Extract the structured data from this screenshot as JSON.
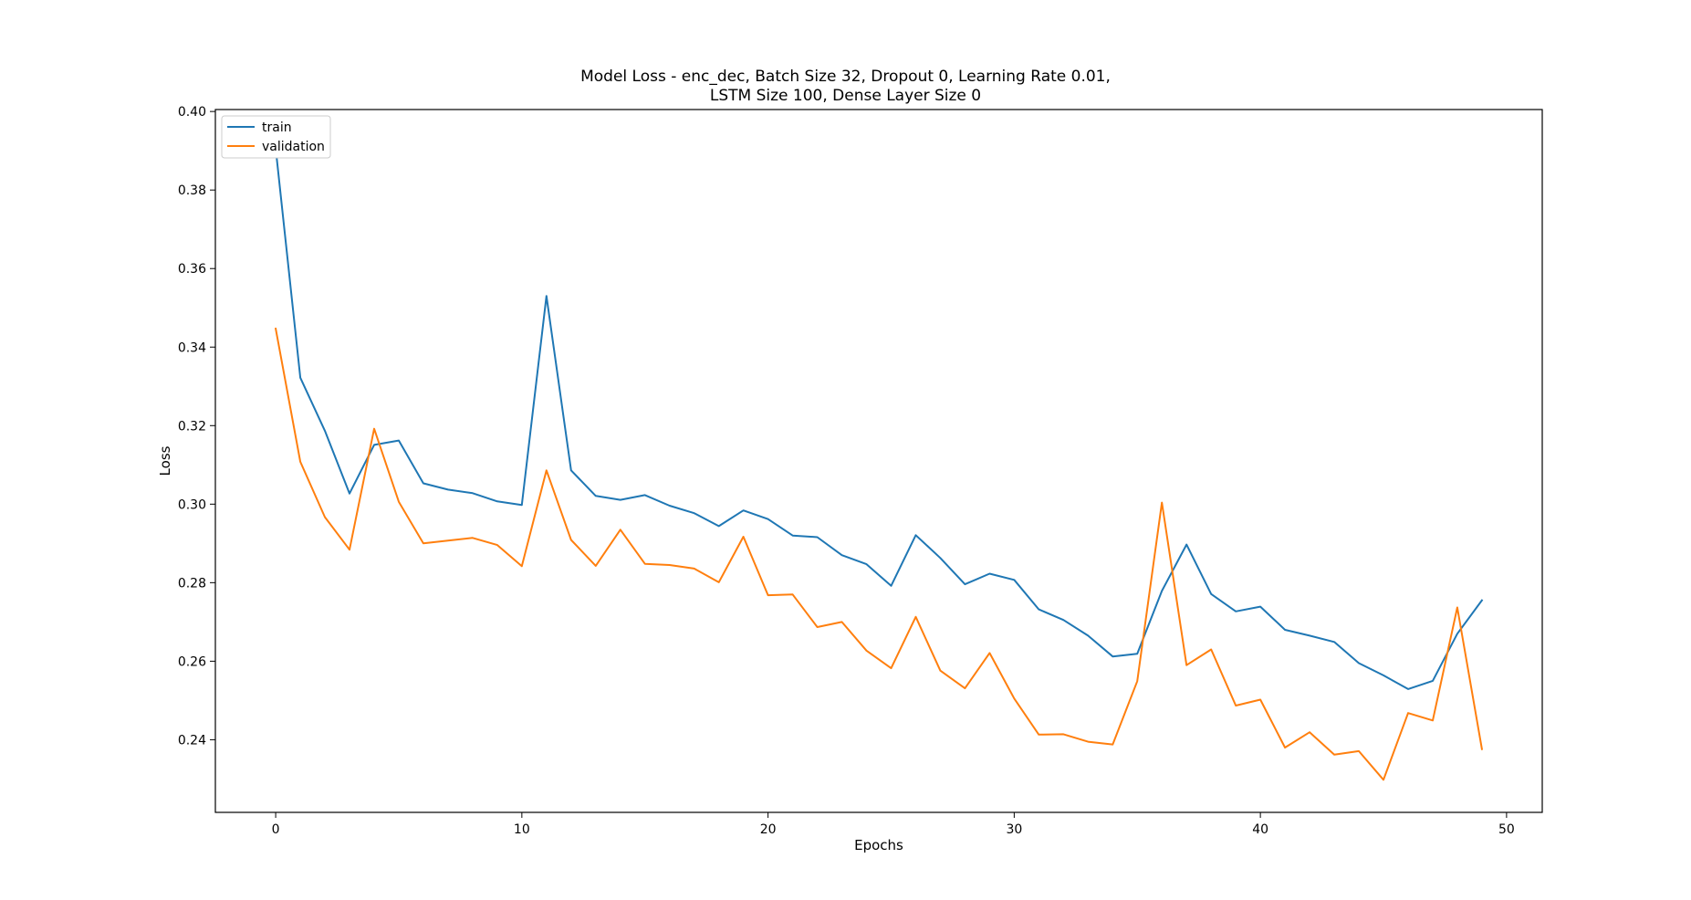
{
  "chart_data": {
    "type": "line",
    "title": "Model Loss - enc_dec, Batch Size 32, Dropout 0, Learning Rate 0.01,",
    "subtitle": "LSTM Size 100, Dense Layer Size 0",
    "xlabel": "Epochs",
    "ylabel": "Loss",
    "xlim": [
      -2.45,
      51.45
    ],
    "ylim": [
      0.2215,
      0.4005
    ],
    "xticks": [
      0,
      10,
      20,
      30,
      40,
      50
    ],
    "yticks": [
      0.24,
      0.26,
      0.28,
      0.3,
      0.32,
      0.34,
      0.36,
      0.38,
      0.4
    ],
    "ytick_labels": [
      "0.24",
      "0.26",
      "0.28",
      "0.30",
      "0.32",
      "0.34",
      "0.36",
      "0.38",
      "0.40"
    ],
    "grid": false,
    "legend_position": "upper left",
    "x": [
      0,
      1,
      2,
      3,
      4,
      5,
      6,
      7,
      8,
      9,
      10,
      11,
      12,
      13,
      14,
      15,
      16,
      17,
      18,
      19,
      20,
      21,
      22,
      23,
      24,
      25,
      26,
      27,
      28,
      29,
      30,
      31,
      32,
      33,
      34,
      35,
      36,
      37,
      38,
      39,
      40,
      41,
      42,
      43,
      44,
      45,
      46,
      47,
      48,
      49
    ],
    "series": [
      {
        "name": "train",
        "color": "#1f77b4",
        "values": [
          0.3906,
          0.3322,
          0.3187,
          0.3027,
          0.3151,
          0.3162,
          0.3053,
          0.3037,
          0.3028,
          0.3007,
          0.2998,
          0.353,
          0.3086,
          0.3021,
          0.3011,
          0.3023,
          0.2996,
          0.2977,
          0.2944,
          0.2984,
          0.2962,
          0.292,
          0.2916,
          0.287,
          0.2847,
          0.2792,
          0.2921,
          0.2863,
          0.2796,
          0.2823,
          0.2807,
          0.2732,
          0.2705,
          0.2665,
          0.2612,
          0.2619,
          0.2779,
          0.2897,
          0.2771,
          0.2727,
          0.2739,
          0.268,
          0.2665,
          0.2649,
          0.2595,
          0.2564,
          0.2529,
          0.255,
          0.267,
          0.2755
        ]
      },
      {
        "name": "validation",
        "color": "#ff7f0e",
        "values": [
          0.3447,
          0.3108,
          0.2967,
          0.2884,
          0.3192,
          0.3006,
          0.29,
          0.2907,
          0.2914,
          0.2896,
          0.2842,
          0.3086,
          0.2909,
          0.2843,
          0.2935,
          0.2848,
          0.2845,
          0.2836,
          0.2801,
          0.2917,
          0.2768,
          0.277,
          0.2687,
          0.27,
          0.2627,
          0.2582,
          0.2713,
          0.2576,
          0.2531,
          0.2621,
          0.2505,
          0.2413,
          0.2414,
          0.2395,
          0.2388,
          0.2549,
          0.3004,
          0.259,
          0.263,
          0.2487,
          0.2502,
          0.238,
          0.2419,
          0.2362,
          0.2371,
          0.2298,
          0.2468,
          0.2449,
          0.2737,
          0.2376
        ]
      }
    ]
  }
}
